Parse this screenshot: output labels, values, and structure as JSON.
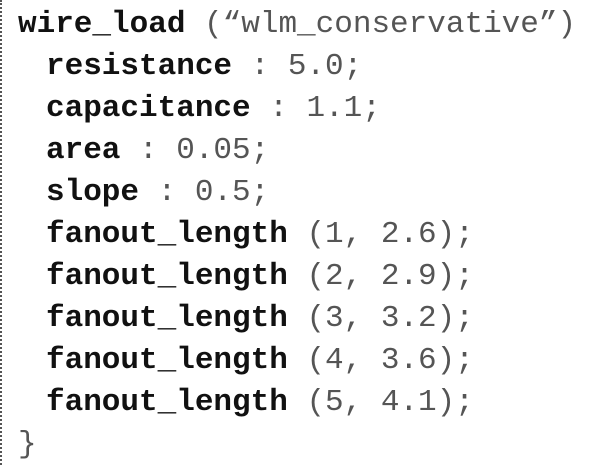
{
  "header": {
    "keyword": "wire_load",
    "rest": "(“wlm_conservative”)"
  },
  "body": [
    {
      "keyword": "resistance",
      "rest": ": 5.0;"
    },
    {
      "keyword": "capacitance",
      "rest": ": 1.1;"
    },
    {
      "keyword": "area",
      "rest": ": 0.05;"
    },
    {
      "keyword": "slope",
      "rest": ": 0.5;"
    },
    {
      "keyword": "fanout_length",
      "rest": "(1, 2.6);"
    },
    {
      "keyword": "fanout_length",
      "rest": "(2, 2.9);"
    },
    {
      "keyword": "fanout_length",
      "rest": "(3, 3.2);"
    },
    {
      "keyword": "fanout_length",
      "rest": "(4, 3.6);"
    },
    {
      "keyword": "fanout_length",
      "rest": "(5, 4.1);"
    }
  ],
  "closing": "}"
}
